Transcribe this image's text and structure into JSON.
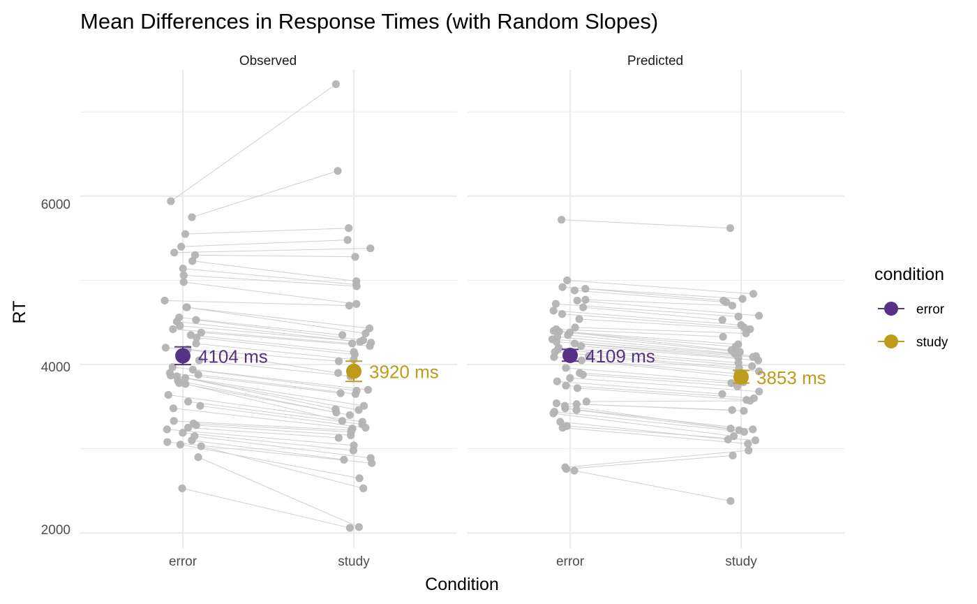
{
  "chart_data": {
    "type": "scatter",
    "title": "Mean Differences in Response Times (with Random Slopes)",
    "xlabel": "Condition",
    "ylabel": "RT",
    "categories": [
      "error",
      "study"
    ],
    "yticks": [
      2000,
      4000,
      6000
    ],
    "ylim": [
      1820,
      7500
    ],
    "grid": true,
    "legend": {
      "title": "condition",
      "position": "right",
      "items": [
        {
          "label": "error",
          "color": "#553285"
        },
        {
          "label": "study",
          "color": "#BE9B1B"
        }
      ]
    },
    "point_color": "#b3b3b3",
    "line_color": "#cfcfcf",
    "panels": [
      {
        "name": "Observed",
        "means": [
          {
            "condition": "error",
            "value": 4104,
            "ci": [
              4000,
              4210
            ],
            "label": "4104 ms"
          },
          {
            "condition": "study",
            "value": 3920,
            "ci": [
              3800,
              4040
            ],
            "label": "3920 ms"
          }
        ],
        "pairs": [
          [
            5940,
            7330
          ],
          [
            5750,
            6300
          ],
          [
            5550,
            5620
          ],
          [
            5400,
            5480
          ],
          [
            5330,
            5380
          ],
          [
            5300,
            5280
          ],
          [
            5230,
            4990
          ],
          [
            5140,
            4950
          ],
          [
            5060,
            4930
          ],
          [
            4980,
            4720
          ],
          [
            4760,
            4700
          ],
          [
            4680,
            4430
          ],
          [
            4680,
            4370
          ],
          [
            4560,
            4350
          ],
          [
            4530,
            4290
          ],
          [
            4510,
            4270
          ],
          [
            4460,
            4260
          ],
          [
            4420,
            4250
          ],
          [
            4380,
            4220
          ],
          [
            4350,
            4150
          ],
          [
            4320,
            4120
          ],
          [
            4250,
            4060
          ],
          [
            4200,
            4040
          ],
          [
            4180,
            3900
          ],
          [
            4050,
            3860
          ],
          [
            3970,
            3700
          ],
          [
            3940,
            3690
          ],
          [
            3900,
            3660
          ],
          [
            3880,
            3650
          ],
          [
            3870,
            3510
          ],
          [
            3860,
            3470
          ],
          [
            3840,
            3460
          ],
          [
            3810,
            3430
          ],
          [
            3780,
            3400
          ],
          [
            3770,
            3330
          ],
          [
            3640,
            3320
          ],
          [
            3560,
            3290
          ],
          [
            3510,
            3250
          ],
          [
            3480,
            3240
          ],
          [
            3330,
            3220
          ],
          [
            3300,
            3200
          ],
          [
            3280,
            3160
          ],
          [
            3250,
            3130
          ],
          [
            3230,
            3040
          ],
          [
            3190,
            2980
          ],
          [
            3150,
            2890
          ],
          [
            3100,
            2870
          ],
          [
            3080,
            2830
          ],
          [
            3050,
            2650
          ],
          [
            3030,
            2530
          ],
          [
            2900,
            2070
          ],
          [
            2530,
            2060
          ]
        ]
      },
      {
        "name": "Predicted",
        "means": [
          {
            "condition": "error",
            "value": 4109,
            "ci": [
              4040,
              4180
            ],
            "label": "4109 ms"
          },
          {
            "condition": "study",
            "value": 3853,
            "ci": [
              3780,
              3930
            ],
            "label": "3853 ms"
          }
        ],
        "pairs": [
          [
            5720,
            5620
          ],
          [
            5000,
            4840
          ],
          [
            4920,
            4780
          ],
          [
            4900,
            4760
          ],
          [
            4880,
            4740
          ],
          [
            4770,
            4700
          ],
          [
            4760,
            4580
          ],
          [
            4720,
            4570
          ],
          [
            4680,
            4530
          ],
          [
            4640,
            4470
          ],
          [
            4600,
            4440
          ],
          [
            4540,
            4420
          ],
          [
            4440,
            4370
          ],
          [
            4420,
            4330
          ],
          [
            4400,
            4240
          ],
          [
            4390,
            4210
          ],
          [
            4380,
            4170
          ],
          [
            4350,
            4150
          ],
          [
            4330,
            4130
          ],
          [
            4300,
            4100
          ],
          [
            4270,
            4090
          ],
          [
            4250,
            4080
          ],
          [
            4220,
            4050
          ],
          [
            4200,
            4020
          ],
          [
            4180,
            3980
          ],
          [
            4150,
            3960
          ],
          [
            4100,
            3920
          ],
          [
            4090,
            3890
          ],
          [
            4050,
            3850
          ],
          [
            3960,
            3790
          ],
          [
            3900,
            3780
          ],
          [
            3880,
            3740
          ],
          [
            3840,
            3680
          ],
          [
            3800,
            3650
          ],
          [
            3750,
            3600
          ],
          [
            3720,
            3580
          ],
          [
            3560,
            3570
          ],
          [
            3540,
            3460
          ],
          [
            3530,
            3450
          ],
          [
            3510,
            3240
          ],
          [
            3480,
            3230
          ],
          [
            3460,
            3220
          ],
          [
            3440,
            3200
          ],
          [
            3420,
            3150
          ],
          [
            3320,
            3110
          ],
          [
            3270,
            3100
          ],
          [
            3250,
            3060
          ],
          [
            2780,
            2980
          ],
          [
            2760,
            2920
          ],
          [
            2740,
            2380
          ]
        ]
      }
    ]
  }
}
